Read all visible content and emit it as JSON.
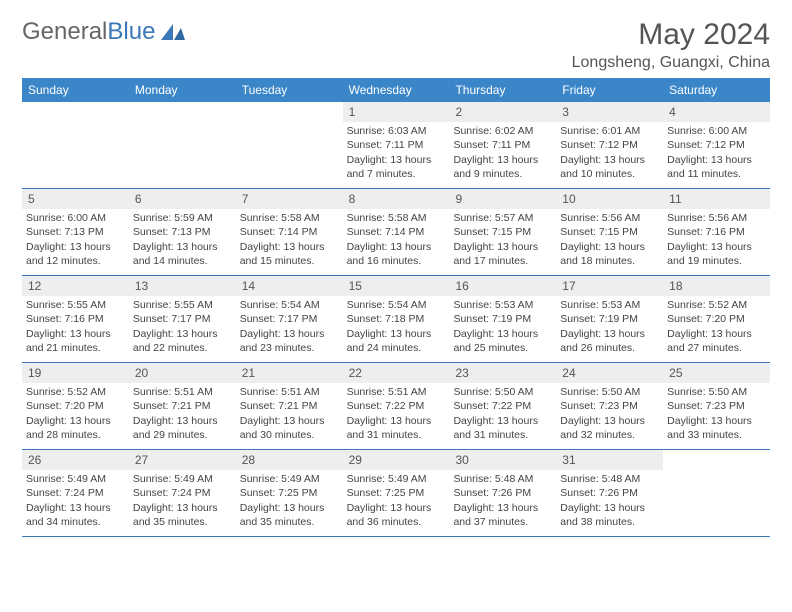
{
  "brand": {
    "general": "General",
    "blue": "Blue"
  },
  "title": "May 2024",
  "location": "Longsheng, Guangxi, China",
  "colors": {
    "header_bar": "#3a86c8",
    "week_divider": "#3a78b8",
    "daynum_bg": "#eceeef",
    "text": "#444444",
    "logo_blue": "#3a78b8"
  },
  "weekdays": [
    "Sunday",
    "Monday",
    "Tuesday",
    "Wednesday",
    "Thursday",
    "Friday",
    "Saturday"
  ],
  "weeks": [
    [
      {
        "n": "",
        "empty": true
      },
      {
        "n": "",
        "empty": true
      },
      {
        "n": "",
        "empty": true
      },
      {
        "n": "1",
        "sunrise": "6:03 AM",
        "sunset": "7:11 PM",
        "daylight": "13 hours and 7 minutes."
      },
      {
        "n": "2",
        "sunrise": "6:02 AM",
        "sunset": "7:11 PM",
        "daylight": "13 hours and 9 minutes."
      },
      {
        "n": "3",
        "sunrise": "6:01 AM",
        "sunset": "7:12 PM",
        "daylight": "13 hours and 10 minutes."
      },
      {
        "n": "4",
        "sunrise": "6:00 AM",
        "sunset": "7:12 PM",
        "daylight": "13 hours and 11 minutes."
      }
    ],
    [
      {
        "n": "5",
        "sunrise": "6:00 AM",
        "sunset": "7:13 PM",
        "daylight": "13 hours and 12 minutes."
      },
      {
        "n": "6",
        "sunrise": "5:59 AM",
        "sunset": "7:13 PM",
        "daylight": "13 hours and 14 minutes."
      },
      {
        "n": "7",
        "sunrise": "5:58 AM",
        "sunset": "7:14 PM",
        "daylight": "13 hours and 15 minutes."
      },
      {
        "n": "8",
        "sunrise": "5:58 AM",
        "sunset": "7:14 PM",
        "daylight": "13 hours and 16 minutes."
      },
      {
        "n": "9",
        "sunrise": "5:57 AM",
        "sunset": "7:15 PM",
        "daylight": "13 hours and 17 minutes."
      },
      {
        "n": "10",
        "sunrise": "5:56 AM",
        "sunset": "7:15 PM",
        "daylight": "13 hours and 18 minutes."
      },
      {
        "n": "11",
        "sunrise": "5:56 AM",
        "sunset": "7:16 PM",
        "daylight": "13 hours and 19 minutes."
      }
    ],
    [
      {
        "n": "12",
        "sunrise": "5:55 AM",
        "sunset": "7:16 PM",
        "daylight": "13 hours and 21 minutes."
      },
      {
        "n": "13",
        "sunrise": "5:55 AM",
        "sunset": "7:17 PM",
        "daylight": "13 hours and 22 minutes."
      },
      {
        "n": "14",
        "sunrise": "5:54 AM",
        "sunset": "7:17 PM",
        "daylight": "13 hours and 23 minutes."
      },
      {
        "n": "15",
        "sunrise": "5:54 AM",
        "sunset": "7:18 PM",
        "daylight": "13 hours and 24 minutes."
      },
      {
        "n": "16",
        "sunrise": "5:53 AM",
        "sunset": "7:19 PM",
        "daylight": "13 hours and 25 minutes."
      },
      {
        "n": "17",
        "sunrise": "5:53 AM",
        "sunset": "7:19 PM",
        "daylight": "13 hours and 26 minutes."
      },
      {
        "n": "18",
        "sunrise": "5:52 AM",
        "sunset": "7:20 PM",
        "daylight": "13 hours and 27 minutes."
      }
    ],
    [
      {
        "n": "19",
        "sunrise": "5:52 AM",
        "sunset": "7:20 PM",
        "daylight": "13 hours and 28 minutes."
      },
      {
        "n": "20",
        "sunrise": "5:51 AM",
        "sunset": "7:21 PM",
        "daylight": "13 hours and 29 minutes."
      },
      {
        "n": "21",
        "sunrise": "5:51 AM",
        "sunset": "7:21 PM",
        "daylight": "13 hours and 30 minutes."
      },
      {
        "n": "22",
        "sunrise": "5:51 AM",
        "sunset": "7:22 PM",
        "daylight": "13 hours and 31 minutes."
      },
      {
        "n": "23",
        "sunrise": "5:50 AM",
        "sunset": "7:22 PM",
        "daylight": "13 hours and 31 minutes."
      },
      {
        "n": "24",
        "sunrise": "5:50 AM",
        "sunset": "7:23 PM",
        "daylight": "13 hours and 32 minutes."
      },
      {
        "n": "25",
        "sunrise": "5:50 AM",
        "sunset": "7:23 PM",
        "daylight": "13 hours and 33 minutes."
      }
    ],
    [
      {
        "n": "26",
        "sunrise": "5:49 AM",
        "sunset": "7:24 PM",
        "daylight": "13 hours and 34 minutes."
      },
      {
        "n": "27",
        "sunrise": "5:49 AM",
        "sunset": "7:24 PM",
        "daylight": "13 hours and 35 minutes."
      },
      {
        "n": "28",
        "sunrise": "5:49 AM",
        "sunset": "7:25 PM",
        "daylight": "13 hours and 35 minutes."
      },
      {
        "n": "29",
        "sunrise": "5:49 AM",
        "sunset": "7:25 PM",
        "daylight": "13 hours and 36 minutes."
      },
      {
        "n": "30",
        "sunrise": "5:48 AM",
        "sunset": "7:26 PM",
        "daylight": "13 hours and 37 minutes."
      },
      {
        "n": "31",
        "sunrise": "5:48 AM",
        "sunset": "7:26 PM",
        "daylight": "13 hours and 38 minutes."
      },
      {
        "n": "",
        "empty": true
      }
    ]
  ],
  "labels": {
    "sunrise": "Sunrise:",
    "sunset": "Sunset:",
    "daylight": "Daylight:"
  }
}
